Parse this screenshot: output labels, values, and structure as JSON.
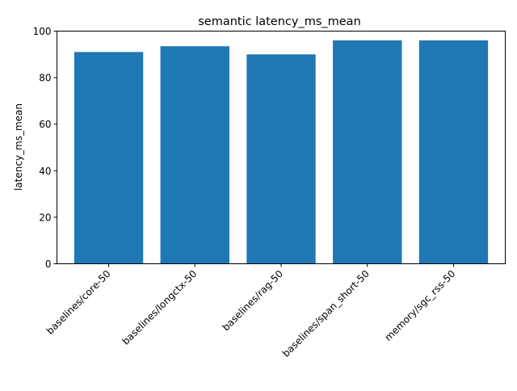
{
  "chart_data": {
    "type": "bar",
    "title": "semantic latency_ms_mean",
    "xlabel": "",
    "ylabel": "latency_ms_mean",
    "categories": [
      "baselines/core-50",
      "baselines/longctx-50",
      "baselines/rag-50",
      "baselines/span_short-50",
      "memory/sgc_rss-50"
    ],
    "values": [
      91,
      93.5,
      90,
      96,
      96
    ],
    "ylim": [
      0,
      100
    ],
    "yticks": [
      0,
      20,
      40,
      60,
      80,
      100
    ],
    "grid": false,
    "bar_color": "#1f77b4"
  }
}
